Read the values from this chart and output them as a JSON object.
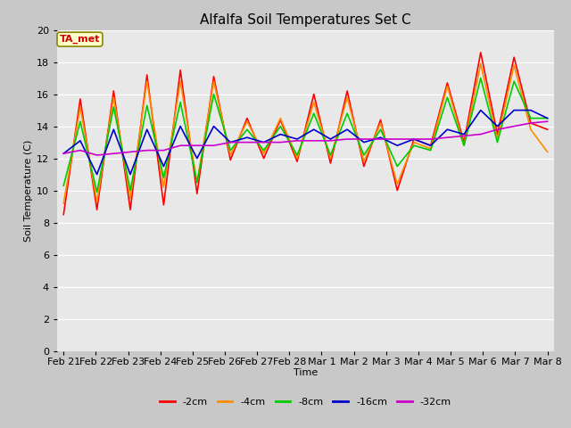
{
  "title": "Alfalfa Soil Temperatures Set C",
  "xlabel": "Time",
  "ylabel": "Soil Temperature (C)",
  "ylim": [
    0,
    20
  ],
  "yticks": [
    0,
    2,
    4,
    6,
    8,
    10,
    12,
    14,
    16,
    18,
    20
  ],
  "fig_bg_color": "#c8c8c8",
  "plot_bg_color": "#e8e8e8",
  "grid_color": "#ffffff",
  "annotation_text": "TA_met",
  "annotation_bg": "#ffffcc",
  "annotation_border": "#888800",
  "series_colors": {
    "-2cm": "#ff0000",
    "-4cm": "#ff8c00",
    "-8cm": "#00cc00",
    "-16cm": "#0000cc",
    "-32cm": "#cc00cc"
  },
  "x_labels": [
    "Feb 21",
    "Feb 22",
    "Feb 23",
    "Feb 24",
    "Feb 25",
    "Feb 26",
    "Feb 27",
    "Feb 28",
    "Mar 1",
    "Mar 2",
    "Mar 3",
    "Mar 4",
    "Mar 5",
    "Mar 6",
    "Mar 7",
    "Mar 8"
  ],
  "series": {
    "-2cm": [
      8.5,
      15.7,
      8.8,
      16.2,
      8.8,
      17.2,
      9.1,
      17.5,
      9.8,
      17.1,
      11.9,
      14.5,
      12.0,
      14.4,
      11.8,
      16.0,
      11.7,
      16.2,
      11.5,
      14.4,
      10.0,
      13.2,
      12.8,
      16.7,
      13.0,
      18.6,
      13.5,
      18.3,
      14.2,
      13.8
    ],
    "-4cm": [
      9.2,
      15.2,
      9.3,
      15.8,
      9.5,
      16.8,
      10.2,
      16.8,
      10.5,
      16.8,
      12.2,
      14.3,
      12.3,
      14.5,
      12.0,
      15.5,
      12.0,
      15.8,
      11.8,
      14.2,
      10.4,
      13.0,
      12.6,
      16.5,
      12.8,
      17.9,
      13.2,
      17.8,
      13.8,
      12.4
    ],
    "-8cm": [
      10.3,
      14.3,
      9.9,
      15.2,
      10.0,
      15.3,
      10.8,
      15.5,
      10.5,
      16.0,
      12.5,
      13.8,
      12.5,
      14.0,
      12.2,
      14.8,
      12.2,
      14.8,
      12.2,
      13.8,
      11.5,
      12.8,
      12.5,
      15.8,
      12.8,
      17.0,
      13.0,
      16.8,
      14.5,
      14.5
    ],
    "-16cm": [
      12.3,
      13.1,
      11.0,
      13.8,
      11.0,
      13.8,
      11.5,
      14.0,
      12.0,
      14.0,
      13.0,
      13.3,
      13.0,
      13.5,
      13.2,
      13.8,
      13.2,
      13.8,
      13.0,
      13.3,
      12.8,
      13.2,
      12.8,
      13.8,
      13.5,
      15.0,
      14.0,
      15.0,
      15.0,
      14.5
    ],
    "-32cm": [
      12.3,
      12.5,
      12.2,
      12.3,
      12.4,
      12.5,
      12.5,
      12.8,
      12.8,
      12.8,
      13.0,
      13.0,
      13.0,
      13.0,
      13.1,
      13.1,
      13.1,
      13.2,
      13.2,
      13.2,
      13.2,
      13.2,
      13.2,
      13.3,
      13.4,
      13.5,
      13.8,
      14.0,
      14.2,
      14.3
    ]
  },
  "title_fontsize": 11,
  "axis_label_fontsize": 8,
  "tick_fontsize": 8,
  "legend_fontsize": 8
}
